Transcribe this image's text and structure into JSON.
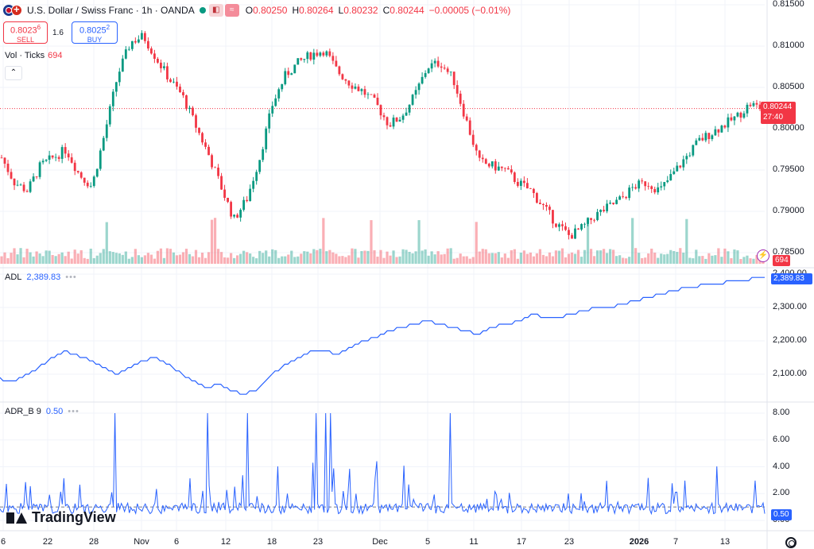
{
  "header": {
    "symbol": "U.S. Dollar / Swiss Franc · 1h · OANDA",
    "o_label": "O",
    "o_value": "0.80250",
    "h_label": "H",
    "h_value": "0.80264",
    "l_label": "L",
    "l_value": "0.80232",
    "c_label": "C",
    "c_value": "0.80244",
    "change": "−0.00005 (−0.01%)"
  },
  "trade": {
    "sell_price": "0.8023",
    "sell_price_sup": "6",
    "sell_label": "SELL",
    "spread": "1.6",
    "buy_price": "0.8025",
    "buy_price_sup": "2",
    "buy_label": "BUY"
  },
  "volume_legend": {
    "label": "Vol · Ticks",
    "value": "694"
  },
  "adl_legend": {
    "label": "ADL",
    "value": "2,389.83",
    "dots": "•••"
  },
  "adrb_legend": {
    "label": "ADR_B 9",
    "value": "0.50",
    "dots": "•••"
  },
  "price_axis": [
    "0.81500",
    "0.81000",
    "0.80500",
    "0.80000",
    "0.79500",
    "0.79000",
    "0.78500"
  ],
  "last_price_tag": {
    "price": "0.80244",
    "countdown": "27:40"
  },
  "volume_tag": "694",
  "adl_axis": [
    "2,400.00",
    "2,300.00",
    "2,200.00",
    "2,100.00"
  ],
  "adl_tag": "2,389.83",
  "adrb_axis": [
    "8.00",
    "6.00",
    "4.00",
    "2.00",
    "0.00"
  ],
  "adrb_tag": "0.50",
  "time_axis": [
    {
      "label": "6",
      "bold": false
    },
    {
      "label": "22",
      "bold": false
    },
    {
      "label": "28",
      "bold": false
    },
    {
      "label": "Nov",
      "bold": false
    },
    {
      "label": "6",
      "bold": false
    },
    {
      "label": "12",
      "bold": false
    },
    {
      "label": "18",
      "bold": false
    },
    {
      "label": "23",
      "bold": false
    },
    {
      "label": "Dec",
      "bold": false
    },
    {
      "label": "5",
      "bold": false
    },
    {
      "label": "11",
      "bold": false
    },
    {
      "label": "17",
      "bold": false
    },
    {
      "label": "23",
      "bold": false
    },
    {
      "label": "2026",
      "bold": true
    },
    {
      "label": "7",
      "bold": false
    },
    {
      "label": "13",
      "bold": false
    }
  ],
  "brand": "TradingView",
  "colors": {
    "up": "#089981",
    "down": "#f23645",
    "indicator": "#2962ff",
    "grid": "#f0f3fa"
  },
  "chart_data": {
    "type": "line",
    "price_series": [
      0.7965,
      0.7935,
      0.7925,
      0.7955,
      0.7965,
      0.7975,
      0.7945,
      0.793,
      0.7995,
      0.8065,
      0.8105,
      0.8112,
      0.8085,
      0.806,
      0.804,
      0.8005,
      0.797,
      0.793,
      0.789,
      0.7915,
      0.7965,
      0.803,
      0.8065,
      0.808,
      0.809,
      0.8095,
      0.807,
      0.8055,
      0.8045,
      0.803,
      0.8005,
      0.8015,
      0.804,
      0.8075,
      0.808,
      0.806,
      0.801,
      0.796,
      0.7955,
      0.795,
      0.7935,
      0.7925,
      0.7905,
      0.7885,
      0.787,
      0.788,
      0.7895,
      0.7905,
      0.7915,
      0.793,
      0.7935,
      0.7925,
      0.7945,
      0.7965,
      0.7985,
      0.7995,
      0.8005,
      0.8015,
      0.803,
      0.8024
    ],
    "adl_series": [
      2085,
      2080,
      2100,
      2120,
      2150,
      2170,
      2155,
      2140,
      2120,
      2100,
      2120,
      2140,
      2150,
      2130,
      2100,
      2080,
      2060,
      2070,
      2050,
      2040,
      2060,
      2100,
      2130,
      2150,
      2170,
      2175,
      2160,
      2180,
      2200,
      2210,
      2230,
      2240,
      2250,
      2260,
      2250,
      2240,
      2230,
      2220,
      2240,
      2250,
      2260,
      2280,
      2270,
      2270,
      2280,
      2290,
      2300,
      2300,
      2310,
      2320,
      2330,
      2340,
      2350,
      2360,
      2365,
      2370,
      2375,
      2380,
      2385,
      2390
    ],
    "adrb_baseline": 0.5,
    "adrb_ylim": [
      0,
      8
    ],
    "adl_ylim": [
      2050,
      2400
    ],
    "price_ylim": [
      0.785,
      0.815
    ]
  }
}
